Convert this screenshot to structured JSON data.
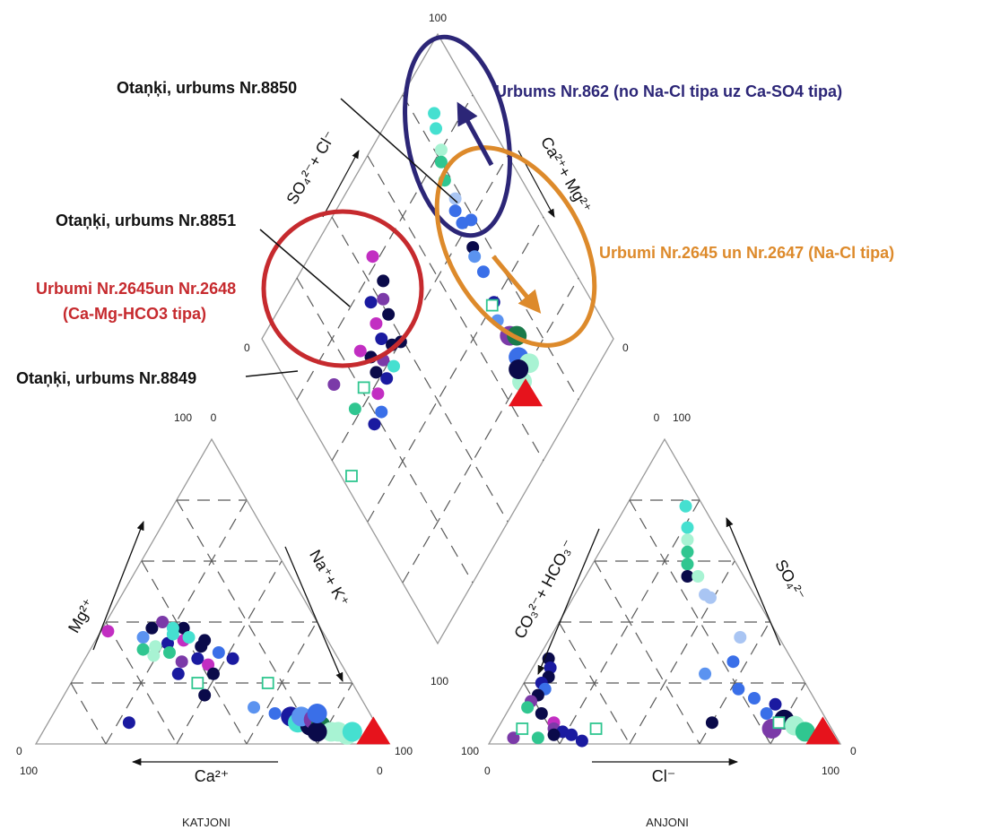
{
  "chart_data": {
    "type": "scatter",
    "subtype": "piper-trilinear",
    "colors": {
      "outline": "#9a9a9a",
      "grid": "#5a5a5a",
      "navy_group": "#2c2677",
      "red_group": "#c62a2e",
      "orange_group": "#dd8a2b",
      "marker_palette": [
        "#0a0a4a",
        "#1a1aa0",
        "#3a6fe8",
        "#5b93f0",
        "#a9c5f3",
        "#7b3aa8",
        "#c22ec2",
        "#45e0d0",
        "#30c690",
        "#a8f3d3",
        "#1a7a4a",
        "#e6131c"
      ]
    },
    "annotations": {
      "otanki_8850": "Otaņķi, urbums Nr.8850",
      "urbums_862": "Urbums Nr.862 (no Na-Cl tipa uz Ca-SO4 tipa)",
      "otanki_8851": "Otaņķi, urbums Nr.8851",
      "urbumi_2645_2647": "Urbumi Nr.2645 un Nr.2647 (Na-Cl tipa)",
      "urbumi_2645_2648_line1": "Urbumi Nr.2645un Nr.2648",
      "urbumi_2645_2648_line2": "(Ca-Mg-HCO3 tipa)",
      "otanki_8849": "Otaņķi, urbums Nr.8849"
    },
    "axis_labels": {
      "diamond_left": "SO₄²⁻+ Cl⁻",
      "diamond_right": "Ca²⁺+ Mg²⁺",
      "cation_left": "Mg²⁺",
      "cation_right": "Na⁺+ K⁺",
      "cation_bottom": "Ca²⁺",
      "anion_left": "CO₃²⁻+ HCO₃⁻",
      "anion_right": "SO₄²⁻",
      "anion_bottom": "Cl⁻"
    },
    "tick_labels": {
      "diamond_top": "100",
      "diamond_left": "0",
      "diamond_right": "0",
      "diamond_bottom": "100",
      "cation_top_left": "100",
      "cation_top_right": "0",
      "cation_left": "0",
      "cation_left_bottom": "100",
      "cation_right": "100",
      "cation_right_bottom": "0",
      "anion_top_left": "0",
      "anion_top_right": "100",
      "anion_left": "100",
      "anion_left_bottom": "0",
      "anion_right": "0",
      "anion_right_bottom": "100"
    },
    "footer": {
      "cation_title": "KATJONI",
      "anion_title": "ANJONI"
    },
    "cation_points": [
      {
        "ca": 48,
        "mg": 38,
        "c": "#0a0a4a"
      },
      {
        "ca": 44,
        "mg": 40,
        "c": "#7b3aa8"
      },
      {
        "ca": 41,
        "mg": 34,
        "c": "#c22ec2"
      },
      {
        "ca": 46,
        "mg": 33,
        "c": "#1a1aa0"
      },
      {
        "ca": 39,
        "mg": 38,
        "c": "#0a0a4a"
      },
      {
        "ca": 50,
        "mg": 32,
        "c": "#a8f3d3"
      },
      {
        "ca": 47,
        "mg": 30,
        "c": "#30c690"
      },
      {
        "ca": 43,
        "mg": 36,
        "c": "#45e0d0"
      },
      {
        "ca": 52,
        "mg": 35,
        "c": "#5b93f0"
      },
      {
        "ca": 37,
        "mg": 32,
        "c": "#0a0a4a"
      },
      {
        "ca": 40,
        "mg": 28,
        "c": "#1a1aa0"
      },
      {
        "ca": 52,
        "mg": 29,
        "c": "#a8f3d3"
      },
      {
        "ca": 54,
        "mg": 31,
        "c": "#30c690"
      },
      {
        "ca": 45,
        "mg": 27,
        "c": "#7b3aa8"
      },
      {
        "ca": 38,
        "mg": 26,
        "c": "#c22ec2"
      },
      {
        "ca": 35,
        "mg": 34,
        "c": "#0a0a4a"
      },
      {
        "ca": 48,
        "mg": 23,
        "c": "#1a1aa0"
      },
      {
        "ca": 61,
        "mg": 37,
        "c": "#c22ec2"
      },
      {
        "ca": 42,
        "mg": 38,
        "c": "#45e0d0"
      },
      {
        "ca": 38,
        "mg": 23,
        "c": "#0a0a4a"
      },
      {
        "ca": 33,
        "mg": 30,
        "c": "#3a6fe8"
      },
      {
        "ca": 30,
        "mg": 28,
        "c": "#1a1aa0"
      },
      {
        "ca": 44,
        "mg": 16,
        "c": "#0a0a4a"
      },
      {
        "ca": 70,
        "mg": 7,
        "c": "#1a1aa0"
      },
      {
        "ca": 32,
        "mg": 12,
        "c": "#5b93f0"
      },
      {
        "ca": 27,
        "mg": 10,
        "c": "#3a6fe8"
      },
      {
        "ca": 23,
        "mg": 9,
        "c": "#1a1aa0"
      },
      {
        "ca": 22,
        "mg": 7,
        "c": "#45e0d0"
      },
      {
        "ca": 19,
        "mg": 6,
        "c": "#0a0a4a"
      },
      {
        "ca": 20,
        "mg": 9,
        "c": "#5b93f0"
      },
      {
        "ca": 17,
        "mg": 8,
        "c": "#7b3aa8"
      },
      {
        "ca": 16,
        "mg": 6,
        "c": "#1a7a4a"
      },
      {
        "ca": 14,
        "mg": 4,
        "c": "#a8f3d3"
      },
      {
        "ca": 12,
        "mg": 4,
        "c": "#a8f3d3"
      },
      {
        "ca": 10,
        "mg": 3,
        "c": "#a8f3d3"
      },
      {
        "ca": 18,
        "mg": 4,
        "c": "#0a0a4a"
      },
      {
        "ca": 8,
        "mg": 4,
        "c": "#45e0d0"
      },
      {
        "ca": 15,
        "mg": 10,
        "c": "#3a6fe8"
      },
      {
        "ca": 39,
        "mg": 35,
        "c": "#45e0d0"
      }
    ],
    "anion_points": [
      {
        "so4": 78,
        "cl": 17,
        "c": "#45e0d0"
      },
      {
        "so4": 71,
        "cl": 21,
        "c": "#45e0d0"
      },
      {
        "so4": 67,
        "cl": 23,
        "c": "#a8f3d3"
      },
      {
        "so4": 63,
        "cl": 25,
        "c": "#30c690"
      },
      {
        "so4": 59,
        "cl": 27,
        "c": "#30c690"
      },
      {
        "so4": 55,
        "cl": 29,
        "c": "#0a0a4a"
      },
      {
        "so4": 55,
        "cl": 32,
        "c": "#a8f3d3"
      },
      {
        "so4": 49,
        "cl": 37,
        "c": "#a9c5f3"
      },
      {
        "so4": 48,
        "cl": 39,
        "c": "#a9c5f3"
      },
      {
        "so4": 28,
        "cl": 3,
        "c": "#0a0a4a"
      },
      {
        "so4": 25,
        "cl": 5,
        "c": "#1a1aa0"
      },
      {
        "so4": 22,
        "cl": 6,
        "c": "#0a0a4a"
      },
      {
        "so4": 20,
        "cl": 5,
        "c": "#1a1aa0"
      },
      {
        "so4": 18,
        "cl": 7,
        "c": "#3a6fe8"
      },
      {
        "so4": 16,
        "cl": 6,
        "c": "#0a0a4a"
      },
      {
        "so4": 14,
        "cl": 5,
        "c": "#7b3aa8"
      },
      {
        "so4": 12,
        "cl": 5,
        "c": "#30c690"
      },
      {
        "so4": 10,
        "cl": 10,
        "c": "#0a0a4a"
      },
      {
        "so4": 7,
        "cl": 15,
        "c": "#c22ec2"
      },
      {
        "so4": 5,
        "cl": 16,
        "c": "#7b3aa8"
      },
      {
        "so4": 4,
        "cl": 19,
        "c": "#1a1aa0"
      },
      {
        "so4": 3,
        "cl": 17,
        "c": "#0a0a4a"
      },
      {
        "so4": 3,
        "cl": 22,
        "c": "#1a1aa0"
      },
      {
        "so4": 2,
        "cl": 13,
        "c": "#30c690"
      },
      {
        "so4": 1,
        "cl": 26,
        "c": "#1a1aa0"
      },
      {
        "so4": 2,
        "cl": 6,
        "c": "#7b3aa8"
      },
      {
        "so4": 23,
        "cl": 50,
        "c": "#5b93f0"
      },
      {
        "so4": 27,
        "cl": 56,
        "c": "#3a6fe8"
      },
      {
        "so4": 35,
        "cl": 54,
        "c": "#a9c5f3"
      },
      {
        "so4": 18,
        "cl": 62,
        "c": "#3a6fe8"
      },
      {
        "so4": 15,
        "cl": 68,
        "c": "#3a6fe8"
      },
      {
        "so4": 13,
        "cl": 75,
        "c": "#1a1aa0"
      },
      {
        "so4": 10,
        "cl": 74,
        "c": "#3a6fe8"
      },
      {
        "so4": 8,
        "cl": 80,
        "c": "#0a0a4a"
      },
      {
        "so4": 6,
        "cl": 84,
        "c": "#a8f3d3"
      },
      {
        "so4": 5,
        "cl": 78,
        "c": "#7b3aa8"
      },
      {
        "so4": 4,
        "cl": 88,
        "c": "#30c690"
      },
      {
        "so4": 7,
        "cl": 60,
        "c": "#0a0a4a"
      }
    ],
    "diamond_points": [
      {
        "so4cl": 86,
        "camg": 88,
        "c": "#45e0d0"
      },
      {
        "so4cl": 84,
        "camg": 85,
        "c": "#45e0d0"
      },
      {
        "so4cl": 82,
        "camg": 80,
        "c": "#a8f3d3"
      },
      {
        "so4cl": 80,
        "camg": 78,
        "c": "#30c690"
      },
      {
        "so4cl": 78,
        "camg": 74,
        "c": "#30c690"
      },
      {
        "so4cl": 78,
        "camg": 68,
        "c": "#a9c5f3"
      },
      {
        "so4cl": 76,
        "camg": 62,
        "c": "#3a6fe8"
      },
      {
        "so4cl": 75,
        "camg": 55,
        "c": "#0a0a4a"
      },
      {
        "so4cl": 74,
        "camg": 48,
        "c": "#3a6fe8"
      },
      {
        "so4cl": 72,
        "camg": 40,
        "c": "#1a1aa0"
      },
      {
        "so4cl": 70,
        "camg": 36,
        "c": "#5b93f0"
      },
      {
        "so4cl": 71,
        "camg": 30,
        "c": "#7b3aa8"
      },
      {
        "so4cl": 73,
        "camg": 28,
        "c": "#1a7a4a"
      },
      {
        "so4cl": 70,
        "camg": 24,
        "c": "#3a6fe8"
      },
      {
        "so4cl": 72,
        "camg": 20,
        "c": "#a8f3d3"
      },
      {
        "so4cl": 67,
        "camg": 19,
        "c": "#a8f3d3"
      },
      {
        "so4cl": 68,
        "camg": 22,
        "c": "#0a0a4a"
      },
      {
        "so4cl": 74,
        "camg": 53,
        "c": "#5b93f0"
      },
      {
        "so4cl": 79,
        "camg": 60,
        "c": "#3a6fe8"
      },
      {
        "so4cl": 76,
        "camg": 66,
        "c": "#3a6fe8"
      },
      {
        "so4cl": 45,
        "camg": 82,
        "c": "#c22ec2"
      },
      {
        "so4cl": 44,
        "camg": 75,
        "c": "#0a0a4a"
      },
      {
        "so4cl": 41,
        "camg": 72,
        "c": "#7b3aa8"
      },
      {
        "so4cl": 37,
        "camg": 75,
        "c": "#1a1aa0"
      },
      {
        "so4cl": 40,
        "camg": 68,
        "c": "#0a0a4a"
      },
      {
        "so4cl": 35,
        "camg": 70,
        "c": "#c22ec2"
      },
      {
        "so4cl": 34,
        "camg": 66,
        "c": "#1a1aa0"
      },
      {
        "so4cl": 36,
        "camg": 62,
        "c": "#0a0a4a"
      },
      {
        "so4cl": 31,
        "camg": 62,
        "c": "#7b3aa8"
      },
      {
        "so4cl": 33,
        "camg": 58,
        "c": "#45e0d0"
      },
      {
        "so4cl": 29,
        "camg": 58,
        "c": "#1a1aa0"
      },
      {
        "so4cl": 27,
        "camg": 62,
        "c": "#0a0a4a"
      },
      {
        "so4cl": 24,
        "camg": 58,
        "c": "#c22ec2"
      },
      {
        "so4cl": 22,
        "camg": 54,
        "c": "#3a6fe8"
      },
      {
        "so4cl": 39,
        "camg": 60,
        "c": "#0a0a4a"
      },
      {
        "so4cl": 18,
        "camg": 54,
        "c": "#1a1aa0"
      },
      {
        "so4cl": 15,
        "camg": 62,
        "c": "#30c690"
      },
      {
        "so4cl": 13,
        "camg": 72,
        "c": "#7b3aa8"
      },
      {
        "so4cl": 28,
        "camg": 66,
        "c": "#0a0a4a"
      },
      {
        "so4cl": 26,
        "camg": 70,
        "c": "#c22ec2"
      }
    ],
    "open_squares": [
      {
        "tri": "cation",
        "ca": 24,
        "mg": 20,
        "c": "#30c690"
      },
      {
        "tri": "cation",
        "ca": 44,
        "mg": 20,
        "c": "#30c690"
      },
      {
        "tri": "anion",
        "so4": 5,
        "cl": 7,
        "c": "#30c690"
      },
      {
        "tri": "anion",
        "so4": 5,
        "cl": 28,
        "c": "#30c690"
      },
      {
        "tri": "anion",
        "so4": 7,
        "cl": 79,
        "c": "#30c690"
      },
      {
        "tri": "diamond",
        "so4cl": 21,
        "camg": 63,
        "c": "#30c690"
      },
      {
        "tri": "diamond",
        "so4cl": 3,
        "camg": 52,
        "c": "#30c690"
      },
      {
        "tri": "diamond",
        "so4cl": 71,
        "camg": 40,
        "c": "#30c690"
      }
    ]
  }
}
